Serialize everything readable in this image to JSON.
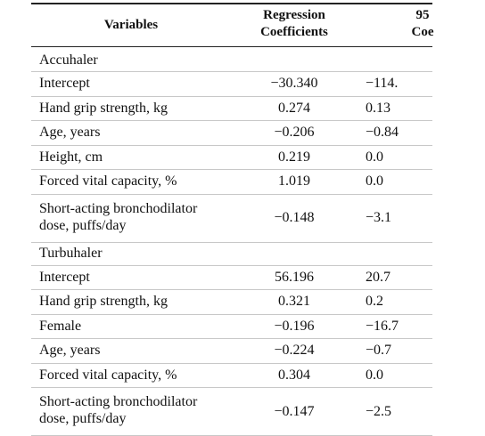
{
  "table": {
    "headers": {
      "variables": "Variables",
      "regression_line1": "Regression",
      "regression_line2": "Coefficients",
      "ci_line1": "95",
      "ci_line2": "Coe"
    },
    "rows": [
      {
        "type": "section",
        "label": "Accuhaler"
      },
      {
        "type": "data",
        "label": "Intercept",
        "coef": "−30.340",
        "ci": "−114."
      },
      {
        "type": "data",
        "label": "Hand grip strength, kg",
        "coef": "0.274",
        "ci": "0.13"
      },
      {
        "type": "data",
        "label": "Age, years",
        "coef": "−0.206",
        "ci": "−0.84"
      },
      {
        "type": "data",
        "label": "Height, cm",
        "coef": "0.219",
        "ci": "0.0"
      },
      {
        "type": "data",
        "label": "Forced vital capacity, %",
        "coef": "1.019",
        "ci": "0.0"
      },
      {
        "type": "data2",
        "label": "Short-acting bronchodilator",
        "label2": "dose, puffs/day",
        "coef": "−0.148",
        "ci": "−3.1"
      },
      {
        "type": "section",
        "label": "Turbuhaler"
      },
      {
        "type": "data",
        "label": "Intercept",
        "coef": "56.196",
        "ci": "20.7"
      },
      {
        "type": "data",
        "label": "Hand grip strength, kg",
        "coef": "0.321",
        "ci": "0.2"
      },
      {
        "type": "data",
        "label": "Female",
        "coef": "−0.196",
        "ci": "−16.7"
      },
      {
        "type": "data",
        "label": "Age, years",
        "coef": "−0.224",
        "ci": "−0.7"
      },
      {
        "type": "data",
        "label": "Forced vital capacity, %",
        "coef": "0.304",
        "ci": "0.0"
      },
      {
        "type": "data2",
        "label": "Short-acting bronchodilator",
        "label2": "dose, puffs/day",
        "coef": "−0.147",
        "ci": "−2.5"
      }
    ]
  }
}
